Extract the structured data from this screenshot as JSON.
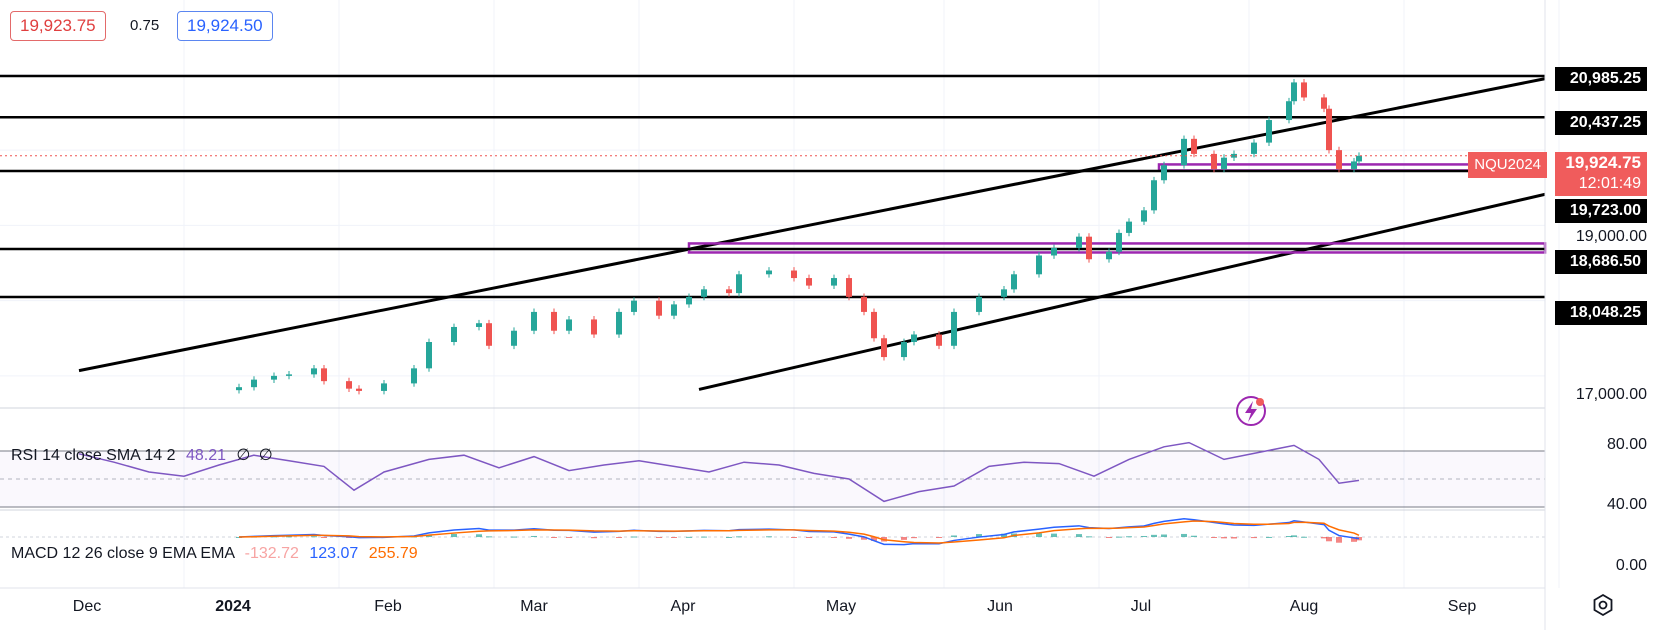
{
  "quote": {
    "bid": "19,923.75",
    "spread": "0.75",
    "ask": "19,924.50"
  },
  "symbol": "NQU2024",
  "last_price": "19,924.75",
  "countdown": "12:01:49",
  "price_axis": {
    "labels": [
      "19,000.00",
      "17,000.00"
    ],
    "level_labels": [
      "20,985.25",
      "20,437.25",
      "19,723.00",
      "18,686.50",
      "18,048.25"
    ]
  },
  "rsi": {
    "label": "RSI 14 close SMA 14 2",
    "value": "48.21",
    "extra1": "∅",
    "extra2": "∅",
    "axis": [
      "80.00",
      "40.00"
    ]
  },
  "macd": {
    "label": "MACD 12 26 close 9 EMA EMA",
    "hist": "-132.72",
    "macd": "123.07",
    "signal": "255.79",
    "axis": [
      "0.00"
    ]
  },
  "time_axis": [
    "Dec",
    "2024",
    "Feb",
    "Mar",
    "Apr",
    "May",
    "Jun",
    "Jul",
    "Aug",
    "Sep"
  ],
  "colors": {
    "up": "#26a69a",
    "down": "#ef5350",
    "level": "#000000",
    "zone": "#9c27b0",
    "rsi": "#7e57c2",
    "macd": "#2962ff",
    "signal": "#ff6d00"
  },
  "icons": {
    "settings": "gear-icon",
    "alert": "lightning-icon"
  },
  "chart_data": {
    "type": "candlestick",
    "symbol": "NQU2024",
    "x_range": [
      "2023-11-10",
      "2024-09-30"
    ],
    "y_range": [
      16800,
      21350
    ],
    "horizontal_levels": [
      20985.25,
      20437.25,
      19723.0,
      18686.5,
      18048.25
    ],
    "zones": [
      {
        "from": "2024-06-13",
        "low": 19730,
        "high": 19810
      },
      {
        "from": "2024-03-11",
        "low": 18640,
        "high": 18760
      }
    ],
    "channel_lines": [
      {
        "from": [
          "2023-11-10",
          17070
        ],
        "to": [
          "2024-09-30",
          21370
        ]
      },
      {
        "from": [
          "2024-03-13",
          16820
        ],
        "to": [
          "2024-09-30",
          19900
        ]
      }
    ],
    "closes": [
      [
        "2023-12-12",
        16850
      ],
      [
        "2023-12-15",
        16950
      ],
      [
        "2023-12-19",
        17000
      ],
      [
        "2023-12-22",
        17020
      ],
      [
        "2023-12-27",
        17100
      ],
      [
        "2023-12-29",
        16930
      ],
      [
        "2024-01-03",
        16830
      ],
      [
        "2024-01-05",
        16800
      ],
      [
        "2024-01-10",
        16900
      ],
      [
        "2024-01-16",
        17100
      ],
      [
        "2024-01-19",
        17450
      ],
      [
        "2024-01-24",
        17650
      ],
      [
        "2024-01-29",
        17700
      ],
      [
        "2024-01-31",
        17400
      ],
      [
        "2024-02-05",
        17600
      ],
      [
        "2024-02-09",
        17850
      ],
      [
        "2024-02-13",
        17600
      ],
      [
        "2024-02-16",
        17750
      ],
      [
        "2024-02-21",
        17550
      ],
      [
        "2024-02-26",
        17850
      ],
      [
        "2024-02-29",
        18000
      ],
      [
        "2024-03-05",
        17800
      ],
      [
        "2024-03-08",
        17950
      ],
      [
        "2024-03-11",
        18050
      ],
      [
        "2024-03-14",
        18150
      ],
      [
        "2024-03-19",
        18100
      ],
      [
        "2024-03-21",
        18350
      ],
      [
        "2024-03-27",
        18400
      ],
      [
        "2024-04-01",
        18300
      ],
      [
        "2024-04-04",
        18200
      ],
      [
        "2024-04-09",
        18300
      ],
      [
        "2024-04-12",
        18050
      ],
      [
        "2024-04-15",
        17850
      ],
      [
        "2024-04-17",
        17500
      ],
      [
        "2024-04-19",
        17250
      ],
      [
        "2024-04-23",
        17450
      ],
      [
        "2024-04-25",
        17550
      ],
      [
        "2024-04-30",
        17400
      ],
      [
        "2024-05-03",
        17850
      ],
      [
        "2024-05-08",
        18050
      ],
      [
        "2024-05-13",
        18150
      ],
      [
        "2024-05-15",
        18350
      ],
      [
        "2024-05-20",
        18600
      ],
      [
        "2024-05-23",
        18700
      ],
      [
        "2024-05-28",
        18850
      ],
      [
        "2024-05-30",
        18550
      ],
      [
        "2024-06-03",
        18650
      ],
      [
        "2024-06-05",
        18900
      ],
      [
        "2024-06-07",
        19050
      ],
      [
        "2024-06-10",
        19200
      ],
      [
        "2024-06-12",
        19600
      ],
      [
        "2024-06-14",
        19800
      ],
      [
        "2024-06-18",
        20150
      ],
      [
        "2024-06-20",
        19950
      ],
      [
        "2024-06-24",
        19750
      ],
      [
        "2024-06-26",
        19900
      ],
      [
        "2024-06-28",
        19950
      ],
      [
        "2024-07-02",
        20100
      ],
      [
        "2024-07-05",
        20400
      ],
      [
        "2024-07-09",
        20650
      ],
      [
        "2024-07-10",
        20900
      ],
      [
        "2024-07-12",
        20700
      ],
      [
        "2024-07-16",
        20550
      ],
      [
        "2024-07-17",
        20000
      ],
      [
        "2024-07-19",
        19750
      ],
      [
        "2024-07-22",
        19850
      ],
      [
        "2024-07-23",
        19924.75
      ]
    ],
    "rsi": {
      "label": "RSI 14 close SMA 14 2",
      "current": 48.21,
      "axis_ticks": [
        80,
        40
      ],
      "points": [
        [
          "2023-11-10",
          68
        ],
        [
          "2023-11-17",
          62
        ],
        [
          "2023-11-24",
          55
        ],
        [
          "2023-12-01",
          52
        ],
        [
          "2023-12-08",
          60
        ],
        [
          "2023-12-15",
          67
        ],
        [
          "2023-12-22",
          63
        ],
        [
          "2023-12-29",
          59
        ],
        [
          "2024-01-04",
          42
        ],
        [
          "2024-01-10",
          55
        ],
        [
          "2024-01-19",
          64
        ],
        [
          "2024-01-26",
          67
        ],
        [
          "2024-02-02",
          58
        ],
        [
          "2024-02-09",
          66
        ],
        [
          "2024-02-16",
          56
        ],
        [
          "2024-02-23",
          60
        ],
        [
          "2024-03-01",
          63
        ],
        [
          "2024-03-08",
          59
        ],
        [
          "2024-03-15",
          55
        ],
        [
          "2024-03-22",
          62
        ],
        [
          "2024-03-29",
          60
        ],
        [
          "2024-04-05",
          54
        ],
        [
          "2024-04-12",
          50
        ],
        [
          "2024-04-19",
          34
        ],
        [
          "2024-04-26",
          41
        ],
        [
          "2024-05-03",
          45
        ],
        [
          "2024-05-10",
          59
        ],
        [
          "2024-05-17",
          62
        ],
        [
          "2024-05-24",
          61
        ],
        [
          "2024-05-31",
          52
        ],
        [
          "2024-06-07",
          64
        ],
        [
          "2024-06-14",
          73
        ],
        [
          "2024-06-19",
          76
        ],
        [
          "2024-06-26",
          64
        ],
        [
          "2024-07-03",
          69
        ],
        [
          "2024-07-10",
          74
        ],
        [
          "2024-07-15",
          64
        ],
        [
          "2024-07-19",
          47
        ],
        [
          "2024-07-23",
          49
        ]
      ]
    },
    "macd": {
      "label": "MACD 12 26 close 9 EMA EMA",
      "histogram_last": -132.72,
      "macd_last": 123.07,
      "signal_last": 255.79,
      "axis_ticks": [
        0
      ]
    }
  }
}
